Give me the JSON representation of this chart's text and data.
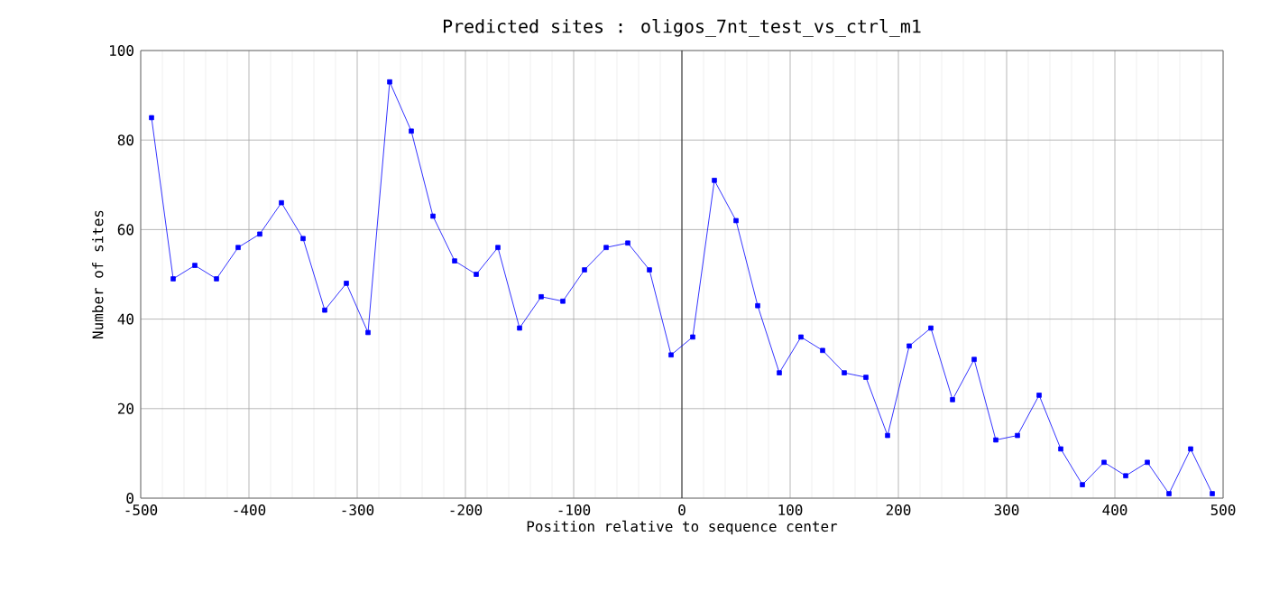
{
  "chart_data": {
    "type": "line",
    "title": "Predicted sites : oligos_7nt_test_vs_ctrl_m1",
    "xlabel": "Position relative to sequence center",
    "ylabel": "Number of sites",
    "x": [
      -490,
      -470,
      -450,
      -430,
      -410,
      -390,
      -370,
      -350,
      -330,
      -310,
      -290,
      -270,
      -250,
      -230,
      -210,
      -190,
      -170,
      -150,
      -130,
      -110,
      -90,
      -70,
      -50,
      -30,
      -10,
      10,
      30,
      50,
      70,
      90,
      110,
      130,
      150,
      170,
      190,
      210,
      230,
      250,
      270,
      290,
      310,
      330,
      350,
      370,
      390,
      410,
      430,
      450,
      470,
      490
    ],
    "series": [
      {
        "color": "#0000ff",
        "values": [
          85,
          49,
          52,
          49,
          56,
          59,
          66,
          58,
          42,
          48,
          37,
          93,
          82,
          63,
          53,
          50,
          56,
          38,
          45,
          44,
          51,
          56,
          57,
          51,
          32,
          36,
          71,
          62,
          43,
          28,
          36,
          33,
          28,
          27,
          14,
          34,
          38,
          22,
          31,
          13,
          14,
          23,
          11,
          3,
          8,
          5,
          8,
          1,
          11,
          1
        ]
      }
    ],
    "xlim": [
      -500,
      500
    ],
    "xticks": [
      -500,
      -400,
      -300,
      -200,
      -100,
      0,
      100,
      200,
      300,
      400,
      500
    ],
    "ylim": [
      0,
      100
    ],
    "yticks": [
      0,
      20,
      40,
      60,
      80,
      100
    ],
    "ref_lines": [
      {
        "axis": "x",
        "value": 0,
        "color": "#000000"
      }
    ],
    "grid": true,
    "marker": "square",
    "line_style": "solid"
  }
}
